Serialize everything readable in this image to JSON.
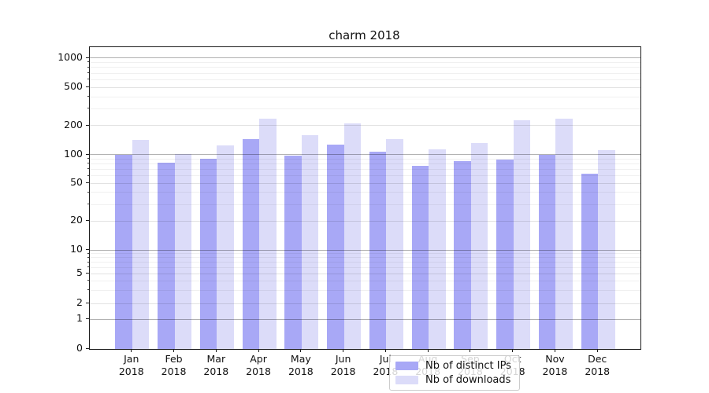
{
  "chart_data": {
    "type": "bar",
    "title": "charm 2018",
    "categories": [
      "Jan",
      "Feb",
      "Mar",
      "Apr",
      "May",
      "Jun",
      "Jul",
      "Aug",
      "Sep",
      "Oct",
      "Nov",
      "Dec"
    ],
    "year": "2018",
    "series": [
      {
        "name": "Nb of distinct IPs",
        "color": "#a8a8f6",
        "values": [
          100,
          82,
          91,
          145,
          98,
          127,
          107,
          76,
          85,
          88,
          100,
          63
        ]
      },
      {
        "name": "Nb of downloads",
        "color": "#dcdcf9",
        "values": [
          143,
          101,
          125,
          234,
          160,
          211,
          144,
          114,
          131,
          226,
          238,
          110
        ]
      }
    ],
    "yscale": "symlog",
    "yticks": [
      0,
      1,
      2,
      5,
      10,
      20,
      50,
      100,
      200,
      500,
      1000
    ],
    "ylim": [
      0,
      1000
    ],
    "xlabel": "",
    "ylabel": "",
    "grid": true,
    "legend_position": "lower center"
  }
}
